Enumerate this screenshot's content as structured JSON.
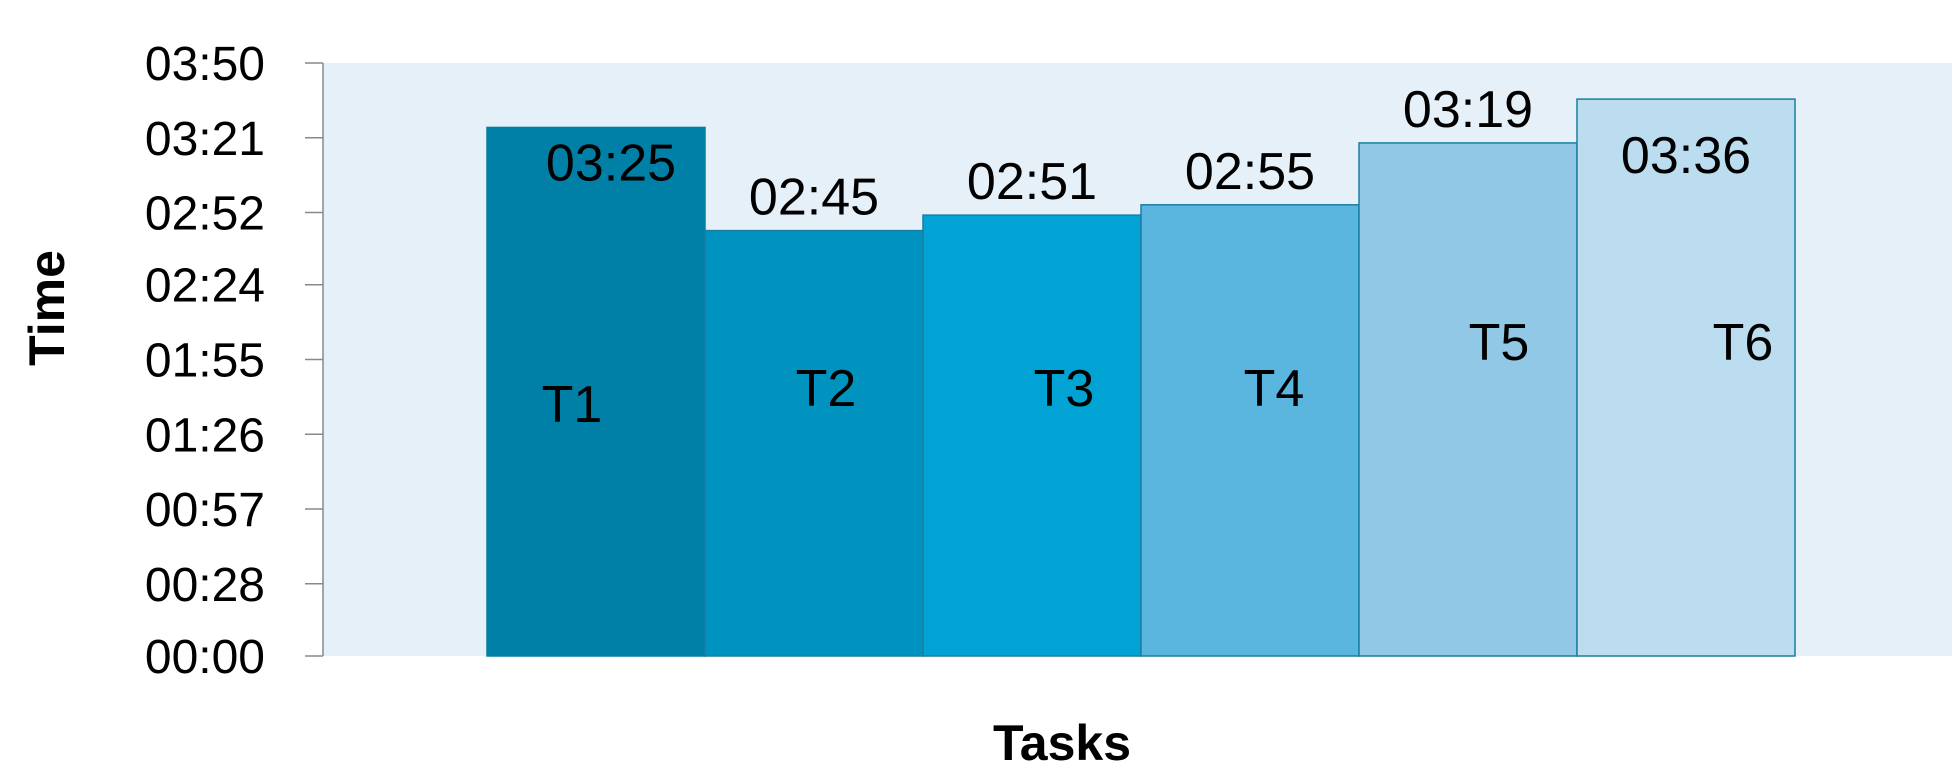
{
  "chart_data": {
    "type": "bar",
    "xlabel": "Tasks",
    "ylabel": "Time",
    "y_unit": "mm:ss",
    "ylim": [
      "00:00",
      "03:50"
    ],
    "yticks": [
      "00:00",
      "00:28",
      "00:57",
      "01:26",
      "01:55",
      "02:24",
      "02:52",
      "03:21",
      "03:50"
    ],
    "categories": [
      "T1",
      "T2",
      "T3",
      "T4",
      "T5",
      "T6"
    ],
    "values": [
      "03:25",
      "02:45",
      "02:51",
      "02:55",
      "03:19",
      "03:36"
    ],
    "data_labels": [
      "03:25",
      "02:45",
      "02:51",
      "02:55",
      "03:19",
      "03:36"
    ],
    "colors": [
      "#0080A6",
      "#0093C0",
      "#00A3D4",
      "#5AB5DF",
      "#91C8E6",
      "#BCDCF0"
    ],
    "plot_background": "#E6F0F9",
    "grid": false,
    "legend": "none"
  }
}
